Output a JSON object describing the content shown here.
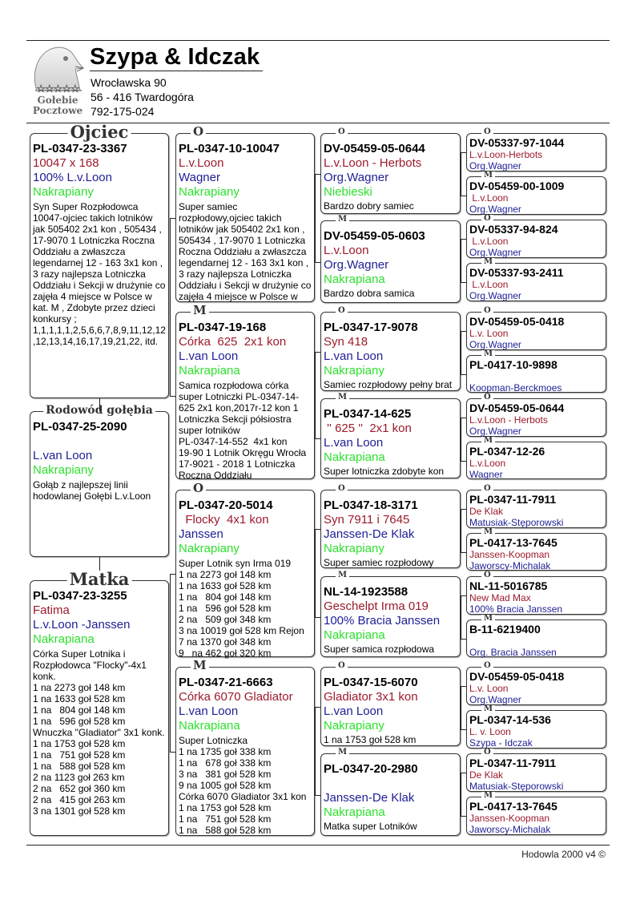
{
  "header": {
    "title": "Szypa & Idczak",
    "address_line1": "Wrocławska 90",
    "address_line2": "56 - 416  Twardogóra",
    "phone": "792-175-024",
    "logo_text_line1": "Gołebie",
    "logo_text_line2": "Pocztowe",
    "logo_icon": "pigeon-head-icon"
  },
  "colors": {
    "ring": "#000000",
    "name": "#9b1b2b",
    "breeder": "#1e1e96",
    "color_desc": "#2ee02e"
  },
  "boxes": [
    {
      "label": "Ojciec",
      "ring": "PL-0347-23-3367",
      "red": "10047 x 168",
      "blue": "100% L.v.Loon",
      "green": "Nakrapiany",
      "notes": [
        "Syn Super Rozpłodowca",
        "10047-ojciec takich lotników",
        "jak 505402 2x1 kon , 505434 ,",
        "17-9070 1 Lotniczka Roczna",
        "Oddziału a zwłaszcza",
        "legendarnej 12 - 163 3x1 kon ,",
        "3 razy najlepsza Lotniczka",
        "Oddziału i Sekcji w drużynie co",
        "zajęła 4 miejsce w Polsce w",
        "kat. M , Zdobyte przez dzieci",
        "konkursy ;",
        "1,1,1,1,1,2,5,6,6,7,8,9,11,12,12",
        ",12,13,14,16,17,19,21,22, itd."
      ]
    },
    {
      "label": "Rodowód gołębia",
      "ring": "PL-0347-25-2090",
      "red": "",
      "blue": "L.van Loon",
      "green": "Nakrapiany",
      "notes": [
        "Gołąb z najlepszej linii",
        "hodowlanej Gołębi L.v.Loon"
      ]
    },
    {
      "label": "Matka",
      "ring": "PL-0347-23-3255",
      "red": "Fatima",
      "blue": "L.v.Loon -Janssen",
      "green": "Nakrapiana",
      "notes": [
        "Córka Super Lotnika i",
        "Rozpłodowca \"Flocky\"-4x1",
        "konk.",
        "1 na 2273 goł 148 km",
        "1 na 1633 goł 528 km",
        "1 na   804 goł 148 km",
        "1 na   596 goł 528 km",
        "Wnuczka \"Gladiator\" 3x1 konk.",
        "1 na 1753 goł 528 km",
        "1 na   751 goł 528 km",
        "1 na   588 goł 528 km",
        "2 na 1123 goł 263 km",
        "2 na   652 goł 360 km",
        "2 na   415 goł 263 km",
        "3 na 1301 goł 528 km"
      ]
    },
    {
      "label": "O",
      "ring": "PL-0347-10-10047",
      "red": "L.v.Loon",
      "blue": "Wagner",
      "green": "Nakrapiany",
      "notes": [
        "Super samiec",
        "rozpłodowy,ojciec takich",
        "lotników jak 505402 2x1 kon ,",
        "505434 , 17-9070 1 Lotniczka",
        "Roczna Oddziału a zwłaszcza",
        "legendarnej 12 - 163 3x1 kon ,",
        "3 razy najlepsza Lotniczka",
        "Oddziału i Sekcji w drużynie co",
        "zajęła 4 miejsce w Polsce w"
      ]
    },
    {
      "label": "M",
      "ring": "PL-0347-19-168",
      "red": "Córka  625  2x1 kon",
      "blue": "L.van Loon",
      "green": "Nakrapiana",
      "notes": [
        "Samica rozpłodowa córka",
        "super Lotniczki PL-0347-14-",
        "625 2x1 kon,2017r-12 kon 1",
        "Lotniczka Sekcji półsiostra",
        "super lotników",
        "PL-0347-14-552  4x1 kon",
        "19-90 1 Lotnik Okręgu Wrocła",
        "17-9021 - 2018 1 Lotniczka",
        "Roczna Oddziału"
      ]
    },
    {
      "label": "O",
      "ring": "PL-0347-20-5014",
      "red": "  Flocky  4x1 kon",
      "blue": "Janssen",
      "green": "Nakrapiany",
      "notes": [
        "Super Lotnik syn Irma 019",
        "1 na 2273 goł 148 km",
        "1 na 1633 goł 528 km",
        "1 na   804 goł 148 km",
        "1 na   596 goł 528 km",
        "2 na   509 goł 348 km",
        "3 na 10019 goł 528 km Rejon",
        "7 na 1370 goł 348 km",
        "9   na 462 goł 320 km"
      ]
    },
    {
      "label": "M",
      "ring": "PL-0347-21-6663",
      "red": "Córka 6070 Gladiator",
      "blue": "L.van Loon",
      "green": "Nakrapiana",
      "notes": [
        "Super Lotniczka",
        "1 na 1735 goł 338 km",
        "1 na   678 goł 338 km",
        "3 na   381 goł 528 km",
        "9 na 1005 goł 528 km",
        "Córka 6070 Gladiator 3x1 kon",
        "1 na 1753 goł 528 km",
        "1 na   751 goł 528 km",
        "1 na   588 goł 528 km"
      ]
    },
    {
      "label": "O",
      "ring": "DV-05459-05-0644",
      "red": "L.v.Loon - Herbots",
      "blue": "Org.Wagner",
      "green": "Niebieski",
      "notes": [
        "Bardzo dobry samiec"
      ]
    },
    {
      "label": "M",
      "ring": "DV-05459-05-0603",
      "red": "L.v.Loon",
      "blue": "Org.Wagner",
      "green": "Nakrapiana",
      "notes": [
        "Bardzo dobra samica"
      ]
    },
    {
      "label": "O",
      "ring": "PL-0347-17-9078",
      "red": "Syn 418",
      "blue": "L.van Loon",
      "green": "Nakrapiany",
      "notes": [
        "Samiec rozpłodowy pełny brat"
      ]
    },
    {
      "label": "M",
      "ring": "PL-0347-14-625",
      "red": " '' 625 ''  2x1 kon",
      "blue": "L.van Loon",
      "green": "Nakrapiana",
      "notes": [
        "Super lotniczka zdobyte kon"
      ]
    },
    {
      "label": "O",
      "ring": "PL-0347-18-3171",
      "red": "Syn 7911 i 7645",
      "blue": "Janssen-De Klak",
      "green": "Nakrapiany",
      "notes": [
        "Super samiec rozpłodowy"
      ]
    },
    {
      "label": "M",
      "ring": "NL-14-1923588",
      "red": "Geschelpt Irma 019",
      "blue": "100% Bracia Janssen",
      "green": "Nakrapiana",
      "notes": [
        "Super samica rozpłodowa"
      ]
    },
    {
      "label": "O",
      "ring": "PL-0347-15-6070",
      "red": "Gladiator 3x1 kon",
      "blue": "L.van Loon",
      "green": "Nakrapiany",
      "notes": [
        "1 na 1753 goł 528 km"
      ]
    },
    {
      "label": "M",
      "ring": "PL-0347-20-2980",
      "red": "",
      "blue": "Janssen-De Klak",
      "green": "Nakrapiana",
      "notes": [
        "Matka super Lotników"
      ]
    },
    {
      "label": "O",
      "ring": "DV-05337-97-1044",
      "red": "L.v.Loon-Herbots",
      "blue": "Org.Wagner"
    },
    {
      "label": "M",
      "ring": "DV-05459-00-1009",
      "red": " L.v.Loon",
      "blue": "Org.Wagner"
    },
    {
      "label": "O",
      "ring": "DV-05337-94-824",
      "red": " L.v.Loon",
      "blue": "Org.Wagner"
    },
    {
      "label": "M",
      "ring": "DV-05337-93-2411",
      "red": " L.v.Loon",
      "blue": "Org.Wagner"
    },
    {
      "label": "O",
      "ring": "DV-05459-05-0418",
      "red": "L.v. Loon",
      "blue": "Org.Wagner"
    },
    {
      "label": "M",
      "ring": "PL-0417-10-9898",
      "red": "",
      "blue": "Koopman-Berckmoes"
    },
    {
      "label": "O",
      "ring": "DV-05459-05-0644",
      "red": "L.v.Loon - Herbots",
      "blue": "Org.Wagner"
    },
    {
      "label": "M",
      "ring": "PL-0347-12-26",
      "red": "L.v.Loon",
      "blue": "Wagner"
    },
    {
      "label": "O",
      "ring": "PL-0347-11-7911",
      "red": "De Klak",
      "blue": "Matusiak-Stęporowski"
    },
    {
      "label": "M",
      "ring": "PL-0417-13-7645",
      "red": "Janssen-Koopman",
      "blue": "Jaworscy-Michalak"
    },
    {
      "label": "O",
      "ring": "NL-11-5016785",
      "red": "New Mad Max",
      "blue": "100% Bracia Janssen"
    },
    {
      "label": "M",
      "ring": "B-11-6219400",
      "red": "",
      "blue": "Org. Bracia Janssen"
    },
    {
      "label": "O",
      "ring": "DV-05459-05-0418",
      "red": "L.v. Loon",
      "blue": "Org.Wagner"
    },
    {
      "label": "M",
      "ring": "PL-0347-14-536",
      "red": "L. v. Loon",
      "blue": "Szypa - Idczak"
    },
    {
      "label": "O",
      "ring": "PL-0347-11-7911",
      "red": "De Klak",
      "blue": "Matusiak-Stęporowski"
    },
    {
      "label": "M",
      "ring": "PL-0417-13-7645",
      "red": "Janssen-Koopman",
      "blue": "Jaworscy-Michalak"
    }
  ],
  "footer": {
    "text": "Hodowla 2000 v4 ©"
  }
}
